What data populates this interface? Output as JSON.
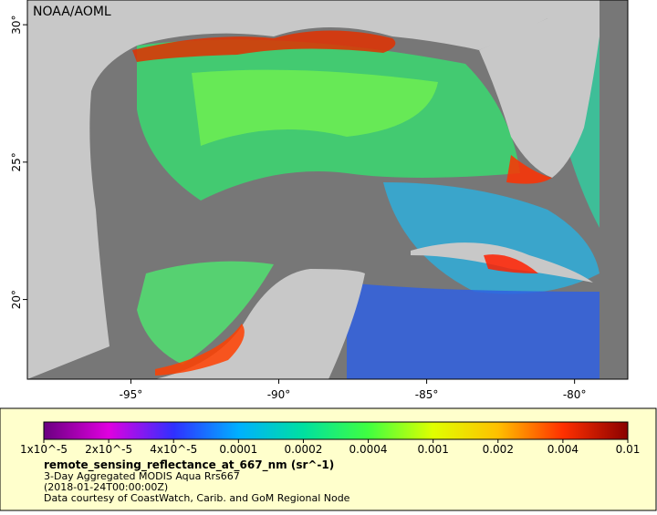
{
  "header": {
    "title": "NOAA/AOML"
  },
  "map": {
    "xlim": [
      -98.5,
      -78.2
    ],
    "ylim": [
      17.1,
      30.9
    ],
    "xticks": [
      {
        "value": -95,
        "label": "-95°"
      },
      {
        "value": -90,
        "label": "-90°"
      },
      {
        "value": -85,
        "label": "-85°"
      },
      {
        "value": -80,
        "label": "-80°"
      }
    ],
    "yticks": [
      {
        "value": 20,
        "label": "20°"
      },
      {
        "value": 25,
        "label": "25°"
      },
      {
        "value": 30,
        "label": "30°"
      }
    ]
  },
  "colorbar": {
    "colors": [
      "#6a0080",
      "#e000e0",
      "#3030ff",
      "#00b0ff",
      "#00e0a0",
      "#40ff40",
      "#e0ff00",
      "#ffc000",
      "#ff3000",
      "#8a0000"
    ],
    "ticks": [
      {
        "value": 1e-05,
        "label": "1x10^-5"
      },
      {
        "value": 2e-05,
        "label": "2x10^-5"
      },
      {
        "value": 4e-05,
        "label": "4x10^-5"
      },
      {
        "value": 0.0001,
        "label": "0.0001"
      },
      {
        "value": 0.0002,
        "label": "0.0002"
      },
      {
        "value": 0.0004,
        "label": "0.0004"
      },
      {
        "value": 0.001,
        "label": "0.001"
      },
      {
        "value": 0.002,
        "label": "0.002"
      },
      {
        "value": 0.004,
        "label": "0.004"
      },
      {
        "value": 0.01,
        "label": "0.01"
      }
    ]
  },
  "caption": {
    "variable": "remote_sensing_reflectance_at_667_nm (sr^-1)",
    "lines": [
      "3-Day Aggregated MODIS Aqua Rrs667",
      "(2018-01-24T00:00:00Z)",
      "Data courtesy of CoastWatch, Carib. and GoM Regional Node"
    ]
  }
}
